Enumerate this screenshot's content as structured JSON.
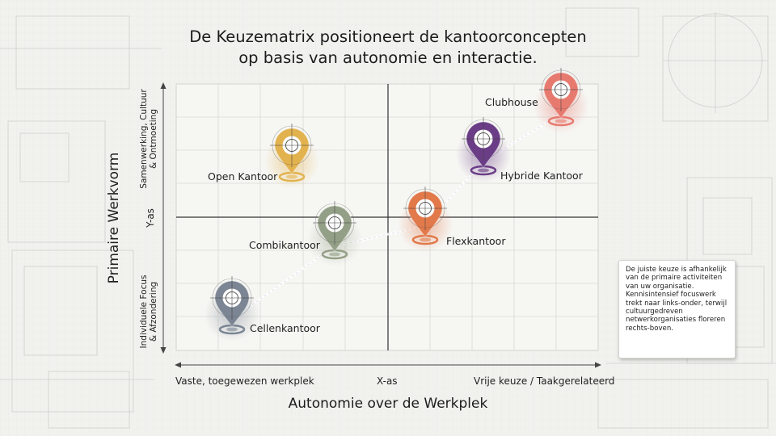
{
  "title": {
    "line1": "De Keuzematrix positioneert de kantoorconcepten",
    "line2": "op basis van autonomie en interactie."
  },
  "y_axis": {
    "title": "Primaire Werkvorm",
    "marker": "Y-as",
    "top_line1": "Samenwerking, Cultuur",
    "top_line2": "& Ontmoeting",
    "bottom_line1": "Individuele Focus",
    "bottom_line2": "& Afzondering"
  },
  "x_axis": {
    "title": "Autonomie over de Werkplek",
    "marker": "X-as",
    "left": "Vaste, toegewezen werkplek",
    "right": "Vrije keuze / Taakgerelateerd"
  },
  "concepts": [
    {
      "label": "Cellenkantoor",
      "color": "#7b8593"
    },
    {
      "label": "Combikantoor",
      "color": "#939f86"
    },
    {
      "label": "Open Kantoor",
      "color": "#e2b24e"
    },
    {
      "label": "Flexkantoor",
      "color": "#e2794a"
    },
    {
      "label": "Hybride Kantoor",
      "color": "#6a3d86"
    },
    {
      "label": "Clubhouse",
      "color": "#e77a6f"
    }
  ],
  "note": {
    "text": "De juiste keuze is afhankelijk van de primaire activiteiten van uw organisatie. Kennisintensief focuswerk trekt naar links-onder, terwijl cultuurgedreven netwerkorganisaties floreren rechts-boven."
  }
}
